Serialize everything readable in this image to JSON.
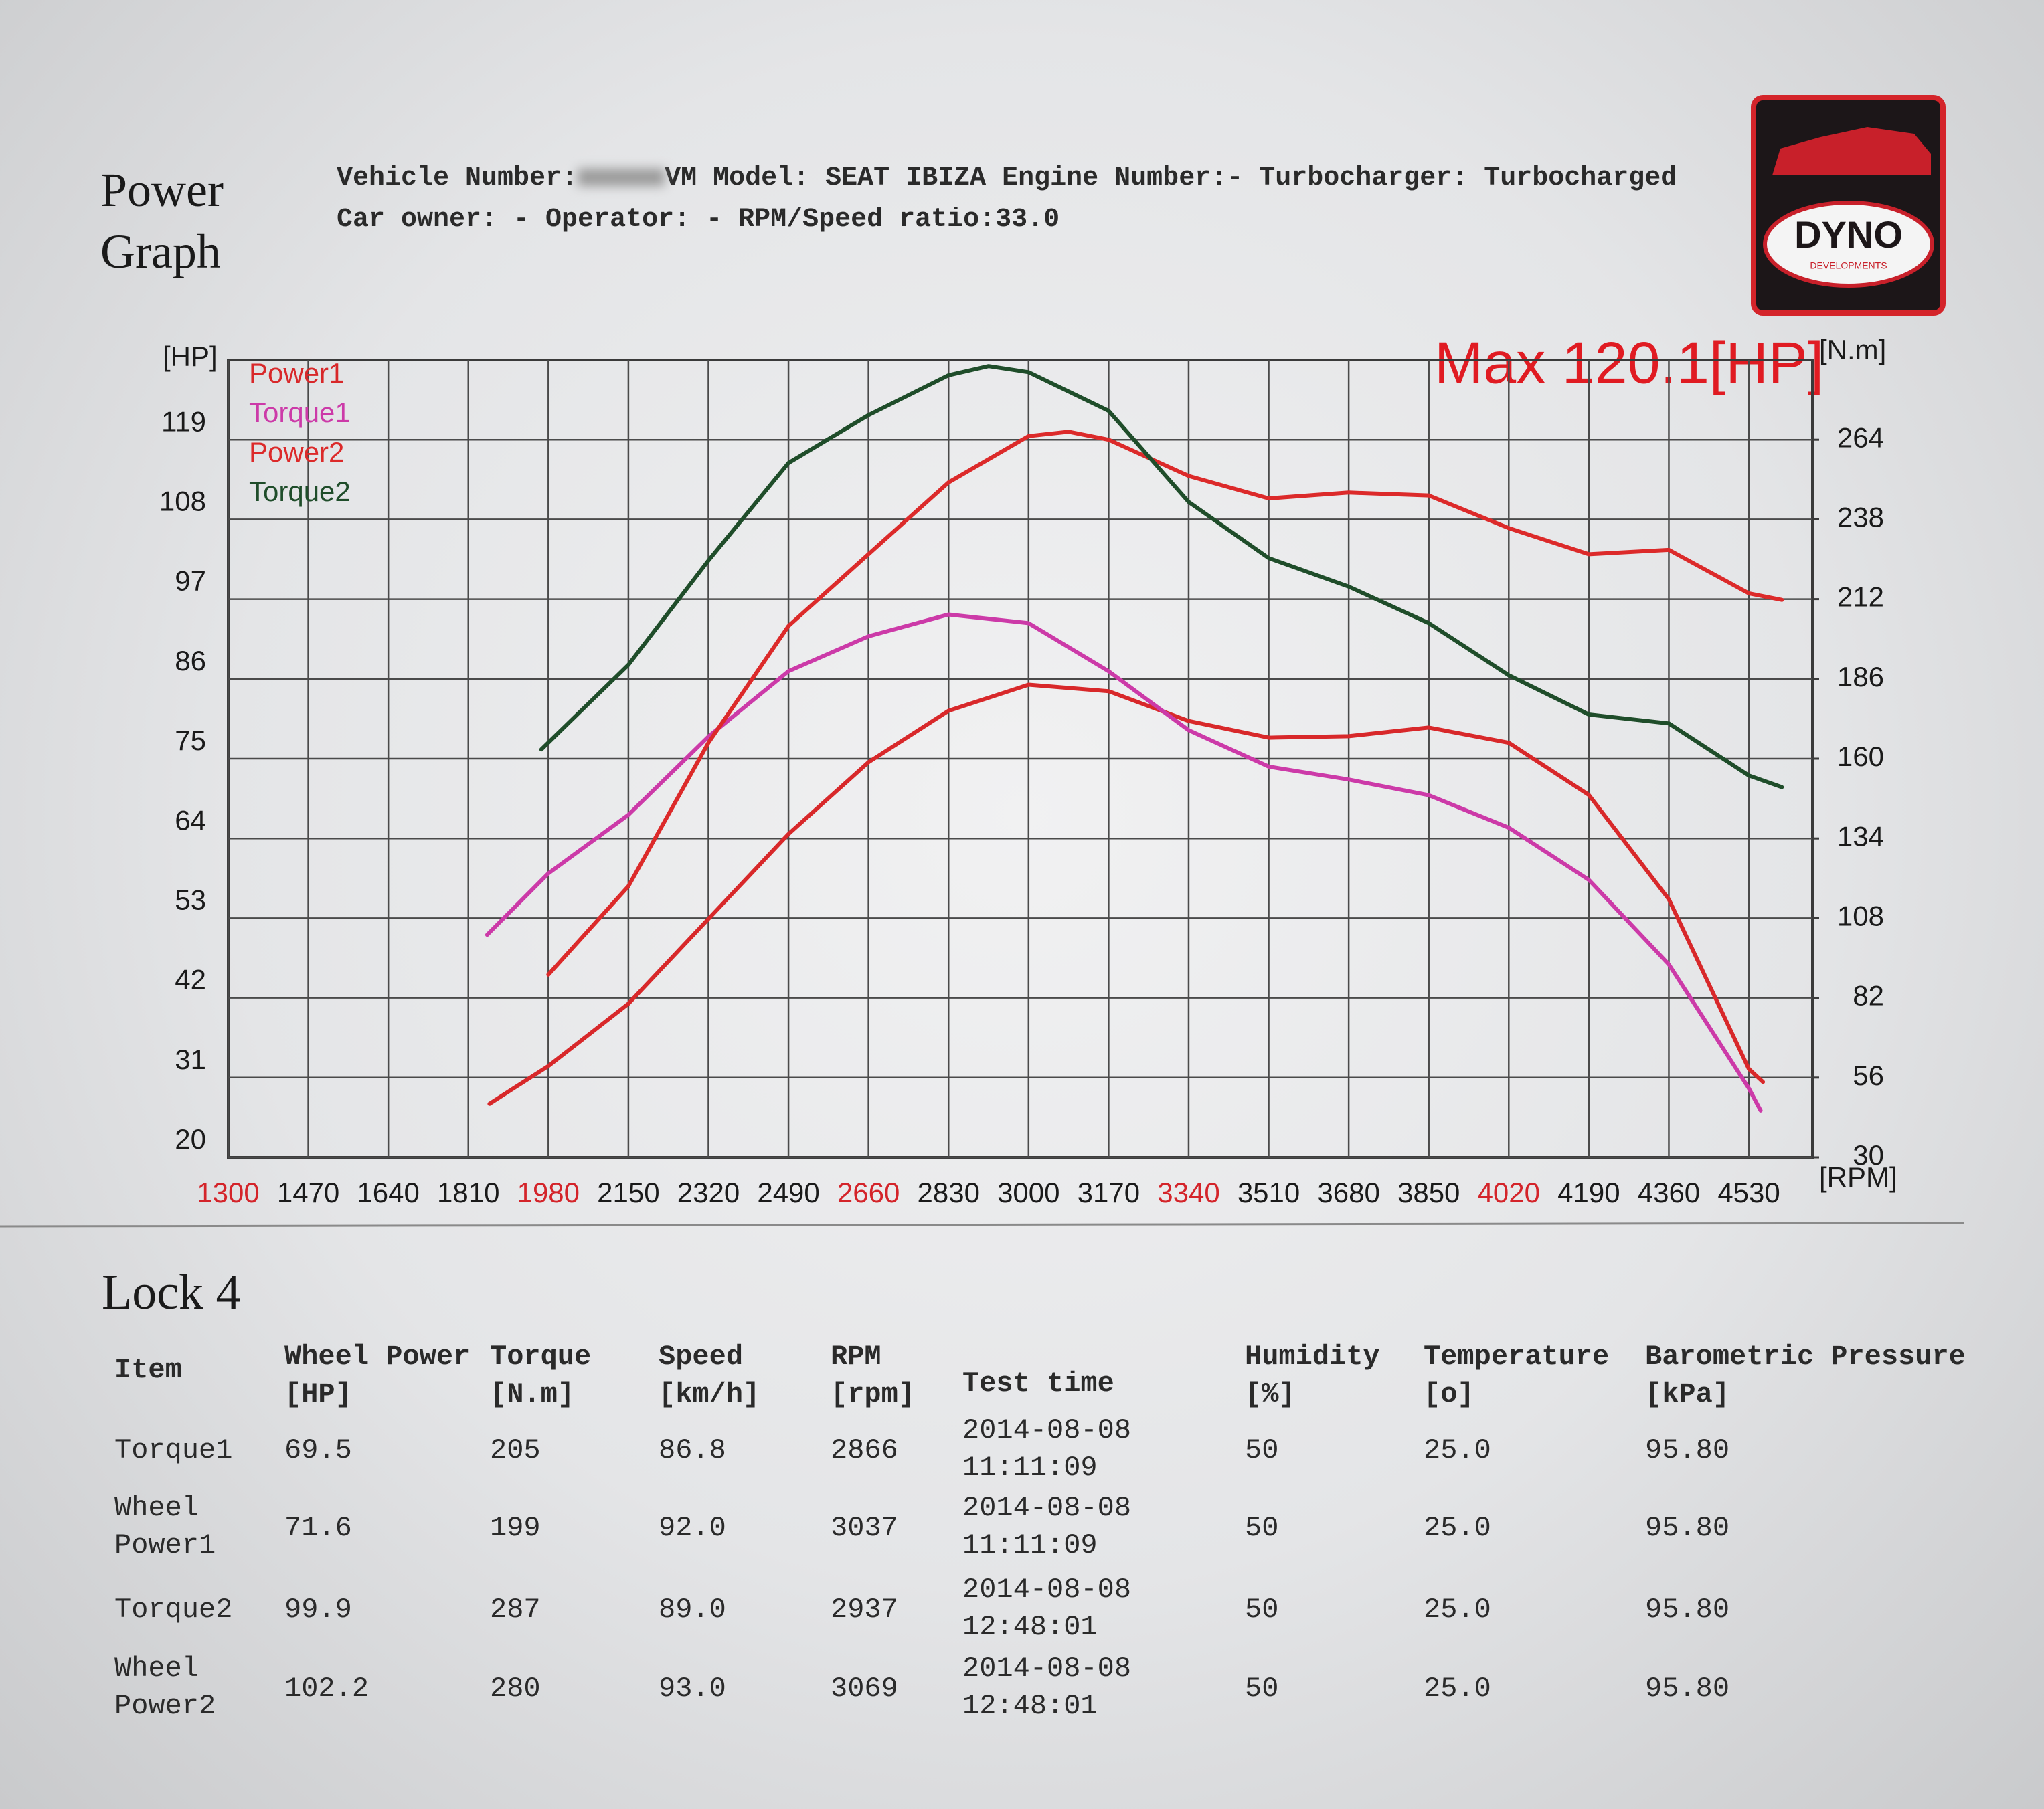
{
  "header": {
    "title": "Power Graph",
    "vehicle_label": "Vehicle Number:",
    "info_line1": "VM Model: SEAT IBIZA Engine Number:- Turbocharger: Turbocharged",
    "info_line2": "Car owner: - Operator: - RPM/Speed ratio:33.0"
  },
  "logo": {
    "text": "DYNO",
    "subtext": "DEVELOPMENTS"
  },
  "chart_data": {
    "type": "line",
    "annotation": "Max 120.1[HP]",
    "y_unit": "[HP]",
    "y2_unit": "[N.m]",
    "x_unit": "[RPM]",
    "xlim": [
      1300,
      4665
    ],
    "xticks": [
      1300,
      1470,
      1640,
      1810,
      1980,
      2150,
      2320,
      2490,
      2660,
      2830,
      3000,
      3170,
      3340,
      3510,
      3680,
      3850,
      4020,
      4190,
      4360,
      4530
    ],
    "xtick_colors": [
      "#d4242a",
      "#1a1a1a",
      "#1a1a1a",
      "#1a1a1a",
      "#d4242a",
      "#1a1a1a",
      "#1a1a1a",
      "#1a1a1a",
      "#d4242a",
      "#1a1a1a",
      "#1a1a1a",
      "#1a1a1a",
      "#d4242a",
      "#1a1a1a",
      "#1a1a1a",
      "#1a1a1a",
      "#d4242a",
      "#1a1a1a",
      "#1a1a1a",
      "#1a1a1a"
    ],
    "ylim": [
      20,
      130
    ],
    "yticks": [
      20,
      31,
      42,
      53,
      64,
      75,
      86,
      97,
      108,
      119
    ],
    "y2lim": [
      30,
      290
    ],
    "y2ticks": [
      30,
      56,
      82,
      108,
      134,
      160,
      186,
      212,
      238,
      264
    ],
    "grid": true,
    "legend": "upper left",
    "series": [
      {
        "name": "Power1",
        "color": "#d8282a",
        "axis": "y",
        "x": [
          1855,
          1980,
          2150,
          2320,
          2490,
          2660,
          2830,
          3000,
          3170,
          3340,
          3510,
          3680,
          3850,
          4020,
          4190,
          4360,
          4530,
          4560
        ],
        "values": [
          27.4,
          32.6,
          41.2,
          52.9,
          64.6,
          74.5,
          81.6,
          85.2,
          84.3,
          80.2,
          77.9,
          78.1,
          79.3,
          77.2,
          70.0,
          55.6,
          32.2,
          30.4
        ]
      },
      {
        "name": "Torque1",
        "color": "#cc3aa8",
        "axis": "y2",
        "x": [
          1850,
          1980,
          2150,
          2320,
          2490,
          2660,
          2830,
          3000,
          3170,
          3340,
          3510,
          3680,
          3850,
          4020,
          4190,
          4360,
          4530,
          4555
        ],
        "values": [
          102.6,
          122.6,
          141.7,
          167.2,
          188.5,
          199.9,
          207.0,
          204.2,
          188.5,
          169.3,
          157.4,
          153.2,
          148.1,
          137.5,
          120.5,
          92.9,
          52.5,
          45.3
        ]
      },
      {
        "name": "Power2",
        "color": "#dc2a2a",
        "axis": "y",
        "x": [
          1980,
          2150,
          2320,
          2490,
          2660,
          2830,
          3000,
          3085,
          3170,
          3340,
          3510,
          3680,
          3850,
          4020,
          4190,
          4360,
          4530,
          4600
        ],
        "values": [
          45.2,
          57.4,
          77.2,
          93.3,
          103.2,
          113.1,
          119.5,
          120.1,
          119.0,
          114.0,
          110.9,
          111.7,
          111.3,
          106.8,
          103.2,
          103.8,
          97.8,
          96.9
        ]
      },
      {
        "name": "Torque2",
        "color": "#1f4d2a",
        "axis": "y2",
        "x": [
          1965,
          2150,
          2320,
          2490,
          2660,
          2830,
          2915,
          3000,
          3170,
          3340,
          3510,
          3680,
          3850,
          4020,
          4190,
          4360,
          4530,
          4600
        ],
        "values": [
          163.0,
          190.6,
          224.6,
          256.4,
          272,
          285,
          288,
          286,
          273.4,
          243.7,
          225.4,
          216.1,
          204.2,
          187.2,
          174.4,
          171.5,
          154.5,
          150.7
        ]
      }
    ]
  },
  "section_title": "Lock 4",
  "table": {
    "columns": [
      "Item",
      "Wheel Power [HP]",
      "Torque [N.m]",
      "Speed [km/h]",
      "RPM [rpm]",
      "Test time",
      "Humidity [%]",
      "Temperature [o]",
      "Barometric Pressure [kPa]"
    ],
    "rows": [
      [
        "Torque1",
        "69.5",
        "205",
        "86.8",
        "2866",
        "2014-08-08 11:11:09",
        "50",
        "25.0",
        "95.80"
      ],
      [
        "Wheel Power1",
        "71.6",
        "199",
        "92.0",
        "3037",
        "2014-08-08 11:11:09",
        "50",
        "25.0",
        "95.80"
      ],
      [
        "Torque2",
        "99.9",
        "287",
        "89.0",
        "2937",
        "2014-08-08 12:48:01",
        "50",
        "25.0",
        "95.80"
      ],
      [
        "Wheel Power2",
        "102.2",
        "280",
        "93.0",
        "3069",
        "2014-08-08 12:48:01",
        "50",
        "25.0",
        "95.80"
      ]
    ]
  }
}
